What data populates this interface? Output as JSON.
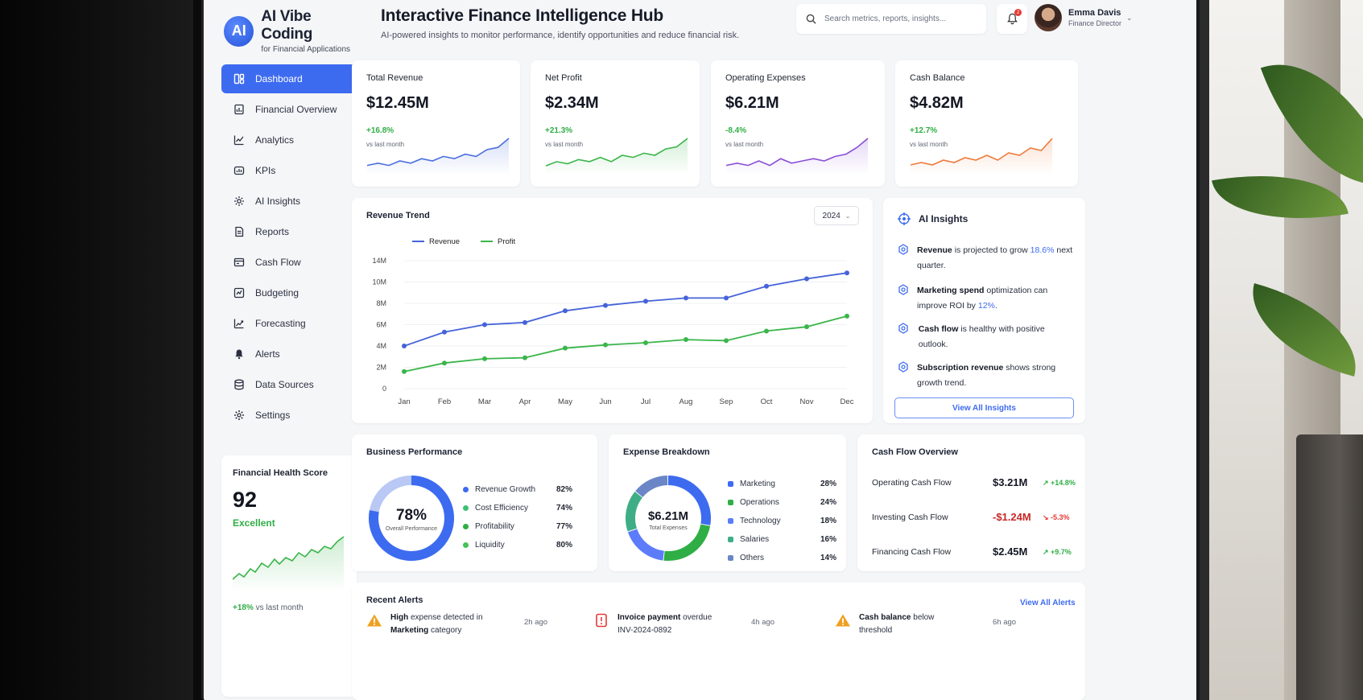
{
  "brand": {
    "logo": "AI",
    "title": "AI Vibe Coding",
    "subtitle": "for Financial Applications"
  },
  "nav": [
    {
      "label": "Dashboard",
      "icon": "dashboard-icon",
      "active": true
    },
    {
      "label": "Financial Overview",
      "icon": "report-icon"
    },
    {
      "label": "Analytics",
      "icon": "analytics-icon"
    },
    {
      "label": "KPIs",
      "icon": "kpi-icon"
    },
    {
      "label": "AI Insights",
      "icon": "ai-icon"
    },
    {
      "label": "Reports",
      "icon": "document-icon"
    },
    {
      "label": "Cash Flow",
      "icon": "cashflow-icon"
    },
    {
      "label": "Budgeting",
      "icon": "budget-icon"
    },
    {
      "label": "Forecasting",
      "icon": "forecast-icon"
    },
    {
      "label": "Alerts",
      "icon": "bell-icon"
    },
    {
      "label": "Data Sources",
      "icon": "database-icon"
    },
    {
      "label": "Settings",
      "icon": "gear-icon"
    }
  ],
  "health": {
    "title": "Financial Health Score",
    "score": "92",
    "status": "Excellent",
    "change": "+18%",
    "note": "vs last month"
  },
  "header": {
    "title": "Interactive Finance Intelligence Hub",
    "subtitle": "AI-powered insights to monitor performance, identify opportunities and reduce financial risk.",
    "search_placeholder": "Search metrics, reports, insights...",
    "notification_count": "2",
    "user_name": "Emma Davis",
    "user_role": "Finance Director"
  },
  "kpis": [
    {
      "label": "Total Revenue",
      "value": "$12.45M",
      "change": "+16.8%",
      "note": "vs last month",
      "color": "#4a6ee0",
      "spark": [
        3,
        4,
        3,
        5,
        4,
        6,
        5,
        7,
        6,
        8,
        7,
        10,
        11,
        15
      ]
    },
    {
      "label": "Net Profit",
      "value": "$2.34M",
      "change": "+21.3%",
      "note": "vs last month",
      "color": "#3ab54a",
      "spark": [
        3,
        5,
        4,
        6,
        5,
        7,
        5,
        8,
        7,
        9,
        8,
        11,
        12,
        16
      ]
    },
    {
      "label": "Operating Expenses",
      "value": "$6.21M",
      "change": "-8.4%",
      "note": "vs last month",
      "color": "#8a4fd6",
      "spark": [
        3,
        4,
        3,
        5,
        3,
        6,
        4,
        5,
        6,
        5,
        7,
        8,
        11,
        15
      ]
    },
    {
      "label": "Cash Balance",
      "value": "$4.82M",
      "change": "+12.7%",
      "note": "vs last month",
      "color": "#f07a3a",
      "spark": [
        3,
        4,
        3,
        5,
        4,
        6,
        5,
        7,
        5,
        8,
        7,
        10,
        9,
        14
      ]
    }
  ],
  "revenue_trend": {
    "title": "Revenue Trend",
    "year": "2024",
    "legend": [
      "Revenue",
      "Profit"
    ]
  },
  "chart_data": {
    "type": "line",
    "title": "Revenue Trend",
    "categories": [
      "Jan",
      "Feb",
      "Mar",
      "Apr",
      "May",
      "Jun",
      "Jul",
      "Aug",
      "Sep",
      "Oct",
      "Nov",
      "Dec"
    ],
    "series": [
      {
        "name": "Revenue",
        "color": "#4563d9",
        "values": [
          4.0,
          5.3,
          6.0,
          6.2,
          7.3,
          7.8,
          8.2,
          8.5,
          8.5,
          9.6,
          10.6,
          11.7
        ]
      },
      {
        "name": "Profit",
        "color": "#3ab54a",
        "values": [
          1.6,
          2.4,
          2.8,
          2.9,
          3.8,
          4.1,
          4.3,
          4.6,
          4.5,
          5.4,
          5.8,
          6.8
        ]
      }
    ],
    "yticks": [
      "0",
      "2M",
      "4M",
      "6M",
      "8M",
      "10M",
      "14M"
    ],
    "ylim": [
      0,
      14
    ],
    "grid": true,
    "legend_position": "top-left"
  },
  "ai_insights": {
    "title": "AI Insights",
    "items": [
      {
        "bold": "Revenue",
        "text": " is projected to grow ",
        "highlight": "18.6%",
        "tail": " next quarter."
      },
      {
        "bold": "Marketing spend",
        "text": " optimization can improve ROI by ",
        "highlight": "12%",
        "tail": "."
      },
      {
        "bold": "Cash flow",
        "text": " is healthy with positive outlook.",
        "highlight": "",
        "tail": ""
      },
      {
        "bold": "Subscription revenue",
        "text": " shows strong growth trend.",
        "highlight": "",
        "tail": ""
      }
    ],
    "button": "View All Insights"
  },
  "business_performance": {
    "title": "Business Performance",
    "center_value": "78%",
    "center_label": "Overall Performance",
    "overall": 78,
    "items": [
      {
        "label": "Revenue Growth",
        "value": "82%",
        "color": "#3d6bf0"
      },
      {
        "label": "Cost Efficiency",
        "value": "74%",
        "color": "#3fbf76"
      },
      {
        "label": "Profitability",
        "value": "77%",
        "color": "#2fae45"
      },
      {
        "label": "Liquidity",
        "value": "80%",
        "color": "#45c35a"
      }
    ]
  },
  "expense_breakdown": {
    "title": "Expense Breakdown",
    "center_value": "$6.21M",
    "center_label": "Total Expenses",
    "items": [
      {
        "label": "Marketing",
        "value": "28%",
        "share": 28,
        "color": "#3d6bf0"
      },
      {
        "label": "Operations",
        "value": "24%",
        "share": 24,
        "color": "#2fae45"
      },
      {
        "label": "Technology",
        "value": "18%",
        "share": 18,
        "color": "#5c7cfa"
      },
      {
        "label": "Salaries",
        "value": "16%",
        "share": 16,
        "color": "#3fae86"
      },
      {
        "label": "Others",
        "value": "14%",
        "share": 14,
        "color": "#6b86c6"
      }
    ]
  },
  "cash_flow": {
    "title": "Cash Flow Overview",
    "rows": [
      {
        "label": "Operating Cash Flow",
        "value": "$3.21M",
        "change": "↗ +14.8%",
        "value_color": "#141824",
        "change_color": "#2fae45"
      },
      {
        "label": "Investing Cash Flow",
        "value": "-$1.24M",
        "change": "↘ -5.3%",
        "value_color": "#c62828",
        "change_color": "#e53935"
      },
      {
        "label": "Financing Cash Flow",
        "value": "$2.45M",
        "change": "↗ +9.7%",
        "value_color": "#141824",
        "change_color": "#2fae45"
      }
    ]
  },
  "alerts": {
    "title": "Recent Alerts",
    "view_all": "View All Alerts",
    "items": [
      {
        "line1_bold": "High",
        "line1": " expense detected in",
        "line2_bold": "Marketing",
        "line2": " category",
        "time": "2h ago",
        "icon": "warning-icon",
        "color": "#f0a020"
      },
      {
        "line1_bold": "Invoice payment",
        "line1": " overdue",
        "line2_bold": "",
        "line2": "INV-2024-0892",
        "time": "4h ago",
        "icon": "invoice-icon",
        "color": "#e53935"
      },
      {
        "line1_bold": "Cash balance",
        "line1": " below",
        "line2_bold": "",
        "line2": "threshold",
        "time": "6h ago",
        "icon": "warning-icon",
        "color": "#f0a020"
      }
    ]
  }
}
